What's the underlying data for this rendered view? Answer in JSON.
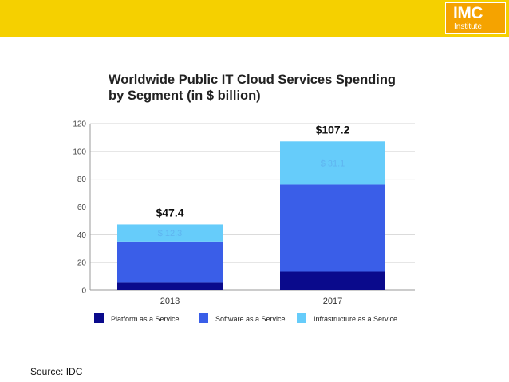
{
  "logo": {
    "main": "IMC",
    "sub": "Institute"
  },
  "chart_data": {
    "type": "bar",
    "stacked": true,
    "title_line1": "Worldwide Public IT Cloud Services Spending",
    "title_line2": "by Segment (in $ billion)",
    "categories": [
      "2013",
      "2017"
    ],
    "series": [
      {
        "name": "Platform as a Service",
        "color": "#0a0a8c",
        "values": [
          5.5,
          13.5
        ]
      },
      {
        "name": "Software as a Service",
        "color": "#3a5ee8",
        "values": [
          29.6,
          62.6
        ]
      },
      {
        "name": "Infrastructure as a Service",
        "color": "#66ccfa",
        "values": [
          12.3,
          31.1
        ]
      }
    ],
    "totals": [
      "$47.4",
      "$107.2"
    ],
    "segment_labels": [
      "$ 12.3",
      "$ 31.1"
    ],
    "yticks": [
      "0",
      "20",
      "40",
      "60",
      "80",
      "100",
      "120"
    ],
    "ylim": [
      0,
      120
    ],
    "legend_position": "bottom",
    "grid": true
  },
  "source": "Source:  IDC"
}
